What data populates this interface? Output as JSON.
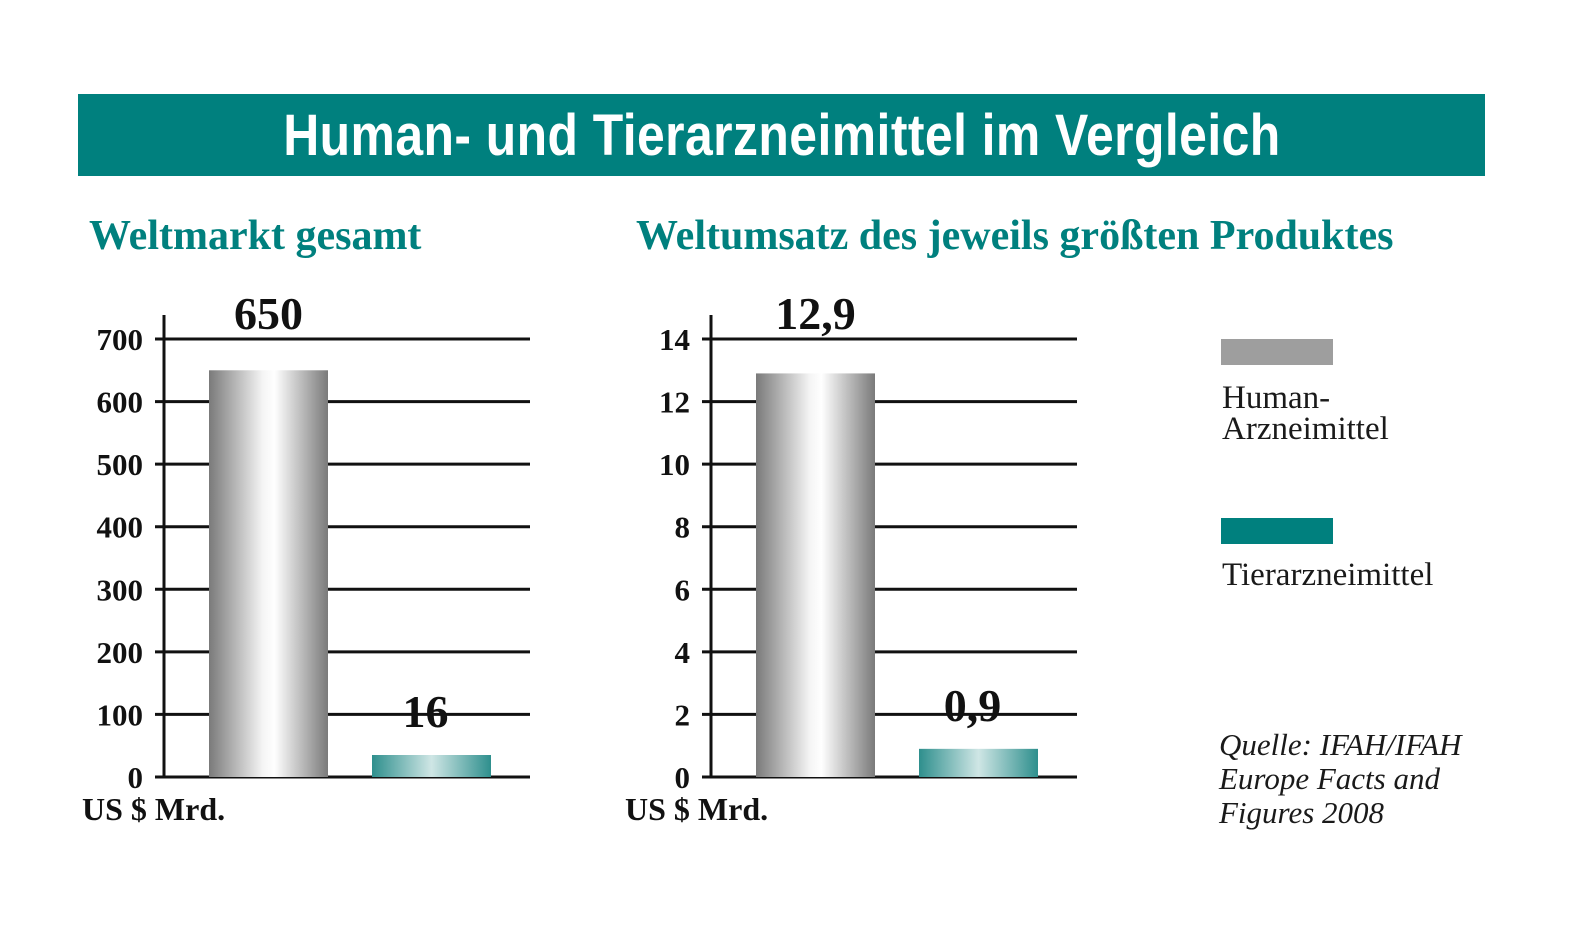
{
  "title": "Human- und Tierarzneimittel im Vergleich",
  "colors": {
    "accent": "#00807e",
    "human": "#9e9e9e",
    "tier": "#00807e"
  },
  "legend": [
    {
      "label": "Human-\nArzneimittel",
      "color": "#9e9e9e"
    },
    {
      "label": "Tierarzneimittel",
      "color": "#00807e"
    }
  ],
  "source": "Quelle: IFAH/IFAH\nEurope Facts and\nFigures 2008",
  "chart_data": [
    {
      "type": "bar",
      "title": "Weltmarkt gesamt",
      "ylabel": "US $ Mrd.",
      "ylim": [
        0,
        700
      ],
      "yticks": [
        "0",
        "100",
        "200",
        "300",
        "400",
        "500",
        "600",
        "700"
      ],
      "categories": [
        "Human-Arzneimittel",
        "Tierarzneimittel"
      ],
      "values": [
        650,
        16
      ],
      "data_labels": [
        "650",
        "16"
      ],
      "grid": true
    },
    {
      "type": "bar",
      "title": "Weltumsatz des jeweils größten Produktes",
      "ylabel": "US $ Mrd.",
      "ylim": [
        0,
        14
      ],
      "yticks": [
        "0",
        "2",
        "4",
        "6",
        "8",
        "10",
        "12",
        "14"
      ],
      "categories": [
        "Human-Arzneimittel",
        "Tierarzneimittel"
      ],
      "values": [
        12.9,
        0.9
      ],
      "data_labels": [
        "12,9",
        "0,9"
      ],
      "grid": true
    }
  ]
}
